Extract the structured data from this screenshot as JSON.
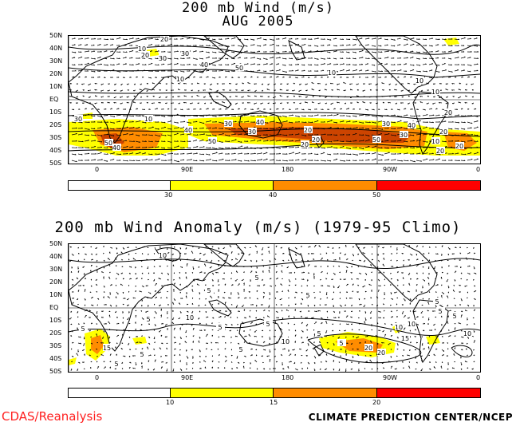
{
  "titles": {
    "line1": "200 mb Wind (m/s)",
    "line2": "AUG 2005",
    "line3": "200 mb Wind Anomaly (m/s) (1979-95 Climo)"
  },
  "lat_labels": [
    "50N",
    "40N",
    "30N",
    "20N",
    "10N",
    "EQ",
    "10S",
    "20S",
    "30S",
    "40S",
    "50S"
  ],
  "lon_labels": [
    "0",
    "90E",
    "180",
    "90W",
    "0"
  ],
  "panel1": {
    "contour_labels": [
      "10",
      "20",
      "30",
      "40",
      "50",
      "10",
      "10",
      "20",
      "30",
      "40",
      "50",
      "30",
      "40",
      "50",
      "10",
      "20",
      "30",
      "40",
      "20",
      "30",
      "50",
      "20",
      "30",
      "40",
      "20",
      "10",
      "20",
      "30",
      "20",
      "10",
      "20",
      "10"
    ],
    "colorbar": {
      "colors": [
        "#ffffff",
        "#ffff00",
        "#ff8c00",
        "#ff0000"
      ],
      "labels": [
        "30",
        "40",
        "50"
      ]
    }
  },
  "panel2": {
    "contour_labels": [
      "10",
      "5",
      "5",
      "5",
      "5",
      "5",
      "5",
      "10",
      "5",
      "5",
      "5",
      "10",
      "15",
      "20",
      "5",
      "5",
      "5",
      "10",
      "5",
      "5",
      "10",
      "15",
      "20",
      "5",
      "10"
    ],
    "colorbar": {
      "colors": [
        "#ffffff",
        "#ffff00",
        "#ff8c00",
        "#ff0000"
      ],
      "labels": [
        "10",
        "15",
        "20"
      ]
    }
  },
  "footer": {
    "left": "CDAS/Reanalysis",
    "right": "CLIMATE PREDICTION CENTER/NCEP"
  }
}
